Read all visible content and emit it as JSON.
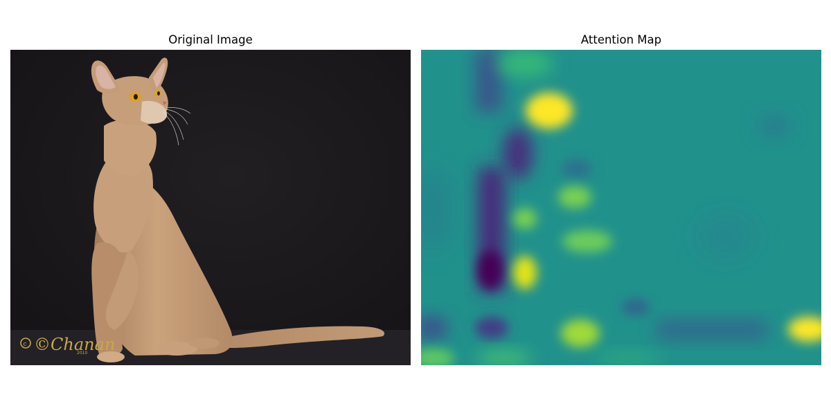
{
  "panels": {
    "left": {
      "title": "Original Image"
    },
    "right": {
      "title": "Attention Map"
    }
  },
  "signature": {
    "text": "©Chanan",
    "year": "2010",
    "color": "#c9a84a"
  },
  "colors": {
    "backdrop": "#1b191c",
    "floor": "#232125",
    "cat_fur": "#c49d78",
    "cat_fur_shadow": "#a17a58",
    "cat_ear_inner": "#d9b4a4",
    "cat_eye": "#d9a426",
    "attention_base": "#21918c",
    "attention_high": "#fde725",
    "attention_mid": "#7ad151",
    "attention_low": "#440154",
    "attention_lowmid": "#3b528b"
  }
}
